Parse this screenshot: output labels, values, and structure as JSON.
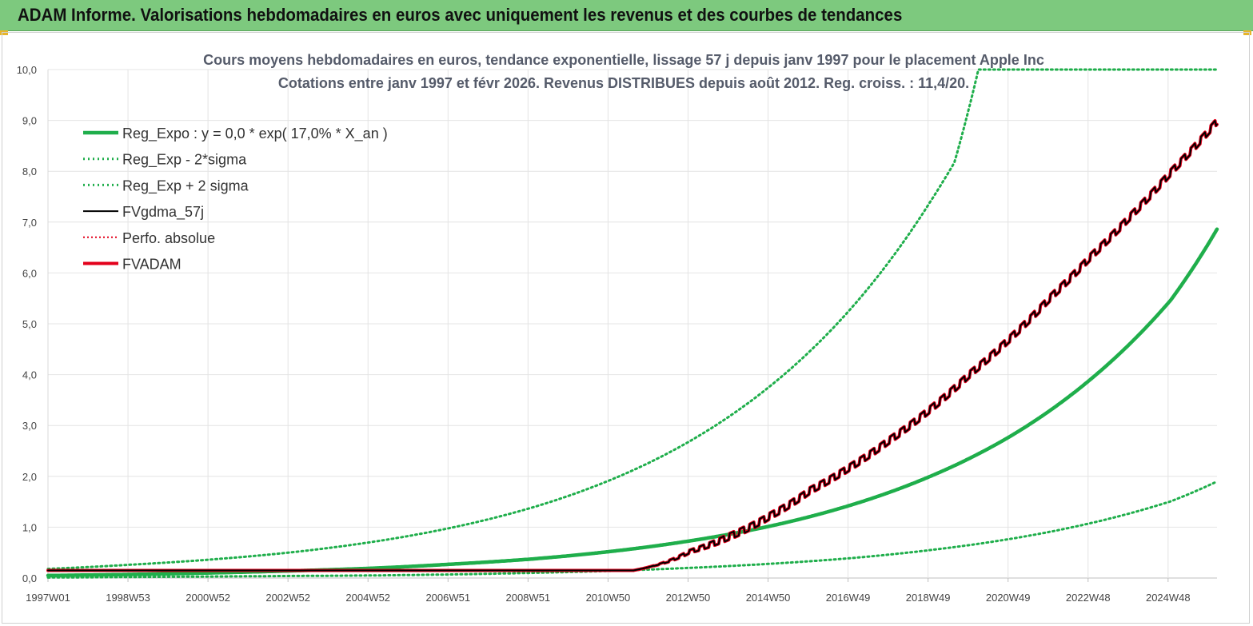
{
  "header": {
    "title": "ADAM Informe. Valorisations hebdomadaires en euros avec uniquement les revenus et des courbes de tendances"
  },
  "colors": {
    "header_bg": "#7dc97e",
    "reg_expo": "#1fae4b",
    "sigma_dotted": "#1fae4b",
    "fvgdma": "#000000",
    "perfo": "#e3001b",
    "fvadam": "#e3001b"
  },
  "chart_data": {
    "type": "line",
    "title_line1": "Cours moyens  hebdomadaires en euros, tendance exponentielle, lissage 57 j depuis janv 1997 pour le placement Apple Inc",
    "title_line2": "Cotations entre janv 1997 et févr 2026. Revenus DISTRIBUES depuis août 2012. Reg. croiss. : 11,4/20.",
    "xlabel": "",
    "ylabel": "",
    "ylim": [
      0,
      10
    ],
    "grid": true,
    "legend_position": "top-left",
    "y_ticks": [
      "0,0",
      "1,0",
      "2,0",
      "3,0",
      "4,0",
      "5,0",
      "6,0",
      "7,0",
      "8,0",
      "9,0",
      "10,0"
    ],
    "x_ticks": [
      "1997W01",
      "1998W53",
      "2000W52",
      "2002W52",
      "2004W52",
      "2006W51",
      "2008W51",
      "2010W50",
      "2012W50",
      "2014W50",
      "2016W49",
      "2018W49",
      "2020W49",
      "2022W48",
      "2024W48"
    ],
    "x_range_years": [
      1997.0,
      2026.15
    ],
    "series": [
      {
        "name": "Reg_Expo : y = 0,0 * exp( 17,0% *  X_an )",
        "style": "solid-thick",
        "x": [
          1997,
          1999,
          2001,
          2003,
          2005,
          2007,
          2009,
          2011,
          2013,
          2015,
          2017,
          2019,
          2021,
          2023,
          2025,
          2026.15
        ],
        "y": [
          0.05,
          0.07,
          0.1,
          0.14,
          0.19,
          0.27,
          0.37,
          0.52,
          0.73,
          1.02,
          1.43,
          2.0,
          2.79,
          3.91,
          5.47,
          6.86
        ]
      },
      {
        "name": "Reg_Exp - 2*sigma",
        "style": "dotted",
        "x": [
          1997,
          1999,
          2001,
          2003,
          2005,
          2007,
          2009,
          2011,
          2013,
          2015,
          2017,
          2019,
          2021,
          2023,
          2025,
          2026.15
        ],
        "y": [
          0.01,
          0.02,
          0.03,
          0.04,
          0.05,
          0.07,
          0.1,
          0.14,
          0.2,
          0.28,
          0.39,
          0.55,
          0.77,
          1.08,
          1.51,
          1.9
        ]
      },
      {
        "name": "Reg_Exp + 2 sigma",
        "style": "dotted",
        "x": [
          1997,
          1999,
          2001,
          2003,
          2005,
          2007,
          2009,
          2011,
          2013,
          2015,
          2017,
          2019,
          2019.6,
          2020.2,
          2026.15
        ],
        "y": [
          0.18,
          0.26,
          0.36,
          0.5,
          0.7,
          0.98,
          1.37,
          1.92,
          2.69,
          3.77,
          5.28,
          7.4,
          8.17,
          10.0,
          10.0
        ]
      },
      {
        "name": "FVgdma_57j",
        "style": "solid",
        "x": [
          1997,
          2000,
          2004,
          2008,
          2011.6,
          2012.0,
          2013.0,
          2014.0,
          2015.0,
          2016.0,
          2017.0,
          2018.0,
          2019.0,
          2020.0,
          2021.0,
          2022.0,
          2023.0,
          2024.0,
          2025.0,
          2026.15
        ],
        "y": [
          0.15,
          0.15,
          0.15,
          0.15,
          0.15,
          0.22,
          0.52,
          0.82,
          1.22,
          1.72,
          2.18,
          2.72,
          3.32,
          4.02,
          4.72,
          5.52,
          6.32,
          7.12,
          7.98,
          8.98
        ]
      },
      {
        "name": "Perfo. absolue",
        "style": "dotted",
        "x": [
          1997,
          2000,
          2004,
          2008,
          2011.6,
          2012.0,
          2013.0,
          2014.0,
          2015.0,
          2016.0,
          2017.0,
          2018.0,
          2019.0,
          2020.0,
          2021.0,
          2022.0,
          2023.0,
          2024.0,
          2025.0,
          2026.15
        ],
        "y": [
          0.15,
          0.15,
          0.15,
          0.15,
          0.15,
          0.22,
          0.52,
          0.82,
          1.22,
          1.72,
          2.18,
          2.72,
          3.32,
          4.02,
          4.72,
          5.52,
          6.32,
          7.12,
          7.98,
          8.98
        ]
      },
      {
        "name": "FVADAM",
        "style": "solid-thick",
        "x": [
          1997,
          2000,
          2004,
          2008,
          2011.6,
          2012.0,
          2013.0,
          2014.0,
          2015.0,
          2016.0,
          2017.0,
          2018.0,
          2019.0,
          2020.0,
          2021.0,
          2022.0,
          2023.0,
          2024.0,
          2025.0,
          2026.15
        ],
        "y": [
          0.15,
          0.15,
          0.15,
          0.15,
          0.15,
          0.22,
          0.52,
          0.82,
          1.22,
          1.72,
          2.18,
          2.72,
          3.32,
          4.02,
          4.72,
          5.52,
          6.32,
          7.12,
          7.98,
          8.98
        ]
      }
    ]
  }
}
